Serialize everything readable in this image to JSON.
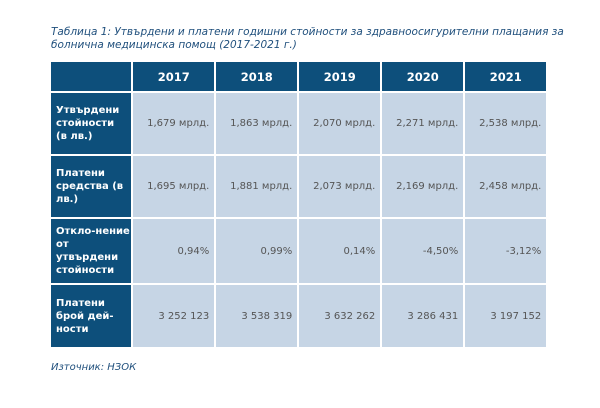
{
  "title": "Таблица 1: Утвърдени и платени годишни стойности за здравноосигурителни плащания за болнична медицинска помощ (2017-2021 г.)",
  "table": {
    "years": [
      "2017",
      "2018",
      "2019",
      "2020",
      "2021"
    ],
    "rows": [
      {
        "label": "Утвърдени стойности (в лв.)",
        "values": [
          "1,679 мрлд.",
          "1,863 мрлд.",
          "2,070 мрлд.",
          "2,271 мрлд.",
          "2,538 млрд."
        ]
      },
      {
        "label": "Платени средства (в лв.)",
        "values": [
          "1,695 млрд.",
          "1,881 мрлд.",
          "2,073 мрлд.",
          "2,169 мрлд.",
          "2,458 млрд."
        ]
      },
      {
        "label": "Откло-нение от утвърдени стойности",
        "values": [
          "0,94%",
          "0,99%",
          "0,14%",
          "-4,50%",
          "-3,12%"
        ]
      },
      {
        "label": "Платени брой дей-ности",
        "values": [
          "3 252 123",
          "3 538 319",
          "3 632 262",
          "3 286 431",
          "3 197 152"
        ]
      }
    ]
  },
  "source": "Източник: НЗОК",
  "colors": {
    "header": "#0d4f7b",
    "cell": "#c6d5e5",
    "title": "#1f4f7c"
  }
}
